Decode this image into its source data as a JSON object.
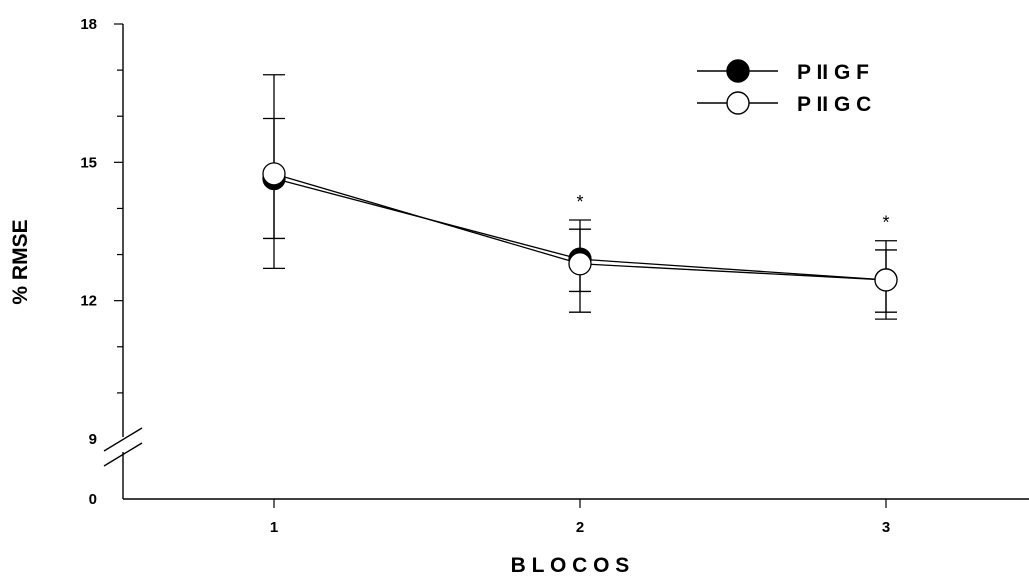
{
  "chart_data": {
    "type": "line",
    "xlabel": "B L O C O S",
    "ylabel": "% RMSE",
    "categories": [
      "1",
      "2",
      "3"
    ],
    "y_ticks": [
      "0",
      "9",
      "12",
      "15",
      "18"
    ],
    "y_axis_break": true,
    "ylim": [
      9,
      18
    ],
    "grid": false,
    "legend_position": "top-right",
    "series": [
      {
        "name": "P II G F",
        "marker": "filled-circle",
        "color": "#000000",
        "values": [
          14.65,
          12.9,
          12.45
        ],
        "error_upper": [
          16.9,
          13.75,
          13.1
        ],
        "error_lower": [
          12.7,
          12.2,
          11.75
        ]
      },
      {
        "name": "P II G C",
        "marker": "open-circle",
        "color": "#000000",
        "values": [
          14.75,
          12.8,
          12.45
        ],
        "error_upper": [
          15.95,
          13.55,
          13.3
        ],
        "error_lower": [
          13.35,
          11.75,
          11.6
        ]
      }
    ],
    "annotations": [
      {
        "category": "2",
        "text": "*"
      },
      {
        "category": "3",
        "text": "*"
      }
    ]
  }
}
